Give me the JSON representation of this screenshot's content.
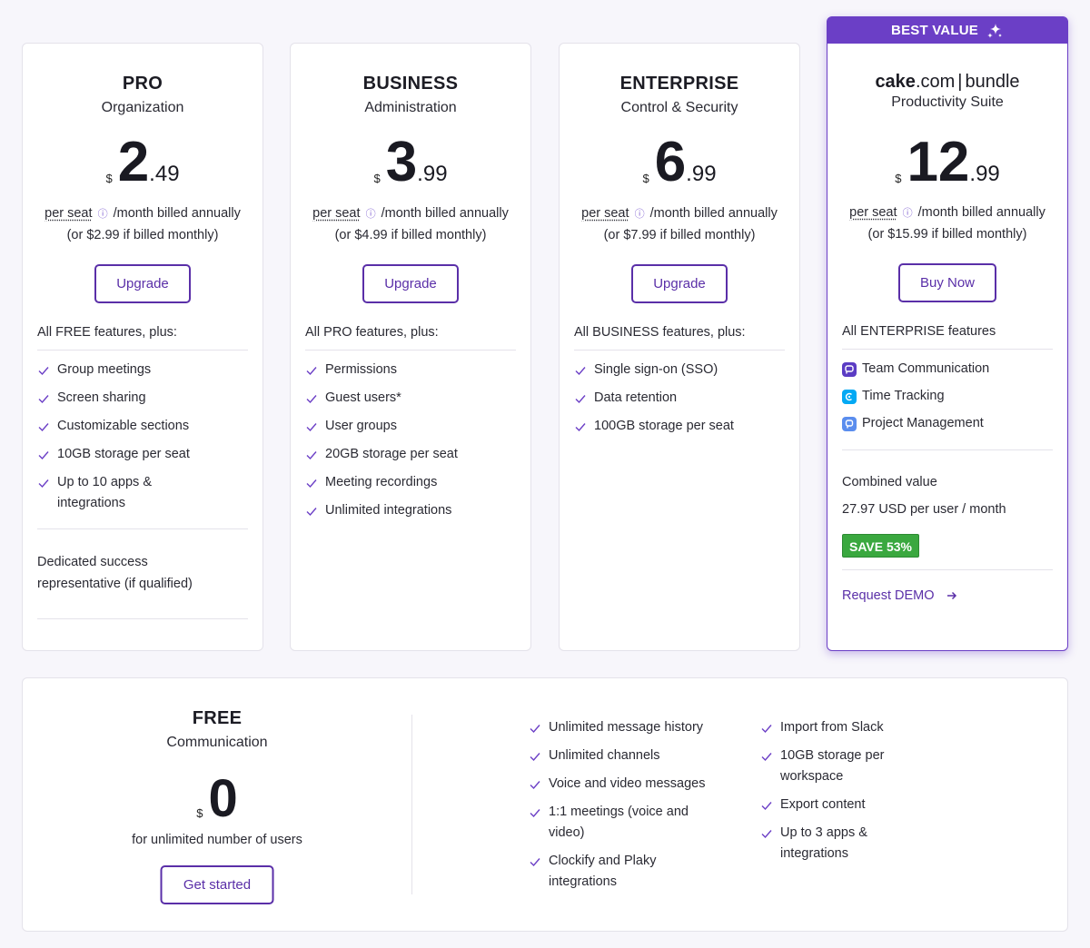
{
  "colors": {
    "accent": "#6b3fc6",
    "button_border": "#5a2fa8",
    "save_badge": "#3aa83f"
  },
  "plans": [
    {
      "name": "PRO",
      "subtitle": "Organization",
      "currency": "$",
      "price_int": "2",
      "price_dec": ".49",
      "per_seat": "per seat",
      "info_icon": "info-icon",
      "billing": "/month billed annually",
      "monthly": "(or $2.99 if billed monthly)",
      "cta": "Upgrade",
      "features_head": "All FREE features, plus:",
      "features": [
        "Group meetings",
        "Screen sharing",
        "Customizable sections",
        "10GB storage per seat",
        "Up to 10 apps & integrations"
      ],
      "extra": "Dedicated success representative (if qualified)"
    },
    {
      "name": "BUSINESS",
      "subtitle": "Administration",
      "currency": "$",
      "price_int": "3",
      "price_dec": ".99",
      "per_seat": "per seat",
      "billing": "/month billed annually",
      "monthly": "(or $4.99 if billed monthly)",
      "cta": "Upgrade",
      "features_head": "All PRO features, plus:",
      "features": [
        "Permissions",
        "Guest users*",
        "User groups",
        "20GB storage per seat",
        "Meeting recordings",
        "Unlimited integrations"
      ]
    },
    {
      "name": "ENTERPRISE",
      "subtitle": "Control & Security",
      "currency": "$",
      "price_int": "6",
      "price_dec": ".99",
      "per_seat": "per seat",
      "billing": "/month billed annually",
      "monthly": "(or $7.99 if billed monthly)",
      "cta": "Upgrade",
      "features_head": "All BUSINESS features, plus:",
      "features": [
        "Single sign-on (SSO)",
        "Data retention",
        "100GB storage per seat"
      ]
    }
  ],
  "bundle": {
    "ribbon": "BEST VALUE",
    "ribbon_icon": "sparkles-icon",
    "logo_bold": "cake",
    "logo_rest": ".com",
    "logo_sep": "|",
    "logo_suffix": "bundle",
    "subtitle": "Productivity Suite",
    "currency": "$",
    "price_int": "12",
    "price_dec": ".99",
    "per_seat": "per seat",
    "billing": "/month billed annually",
    "monthly": "(or $15.99 if billed monthly)",
    "cta": "Buy Now",
    "features_head": "All ENTERPRISE features",
    "apps": [
      {
        "label": "Team Communication",
        "icon": "pumble-icon",
        "color": "#5b3cc4"
      },
      {
        "label": "Time Tracking",
        "icon": "clockify-icon",
        "color": "#03a9f4"
      },
      {
        "label": "Project Management",
        "icon": "plaky-icon",
        "color": "#5a8dee"
      }
    ],
    "combined_label": "Combined value",
    "combined_value": "27.97 USD per user / month",
    "save": "SAVE 53%",
    "demo": "Request DEMO"
  },
  "free": {
    "name": "FREE",
    "subtitle": "Communication",
    "currency": "$",
    "price_int": "0",
    "users": "for unlimited number of users",
    "cta": "Get started",
    "col1": [
      "Unlimited message history",
      "Unlimited channels",
      "Voice and video messages",
      "1:1 meetings (voice and video)",
      "Clockify and Plaky integrations"
    ],
    "col2": [
      "Import from Slack",
      "10GB storage per workspace",
      "Export content",
      "Up to 3 apps & integrations"
    ]
  }
}
